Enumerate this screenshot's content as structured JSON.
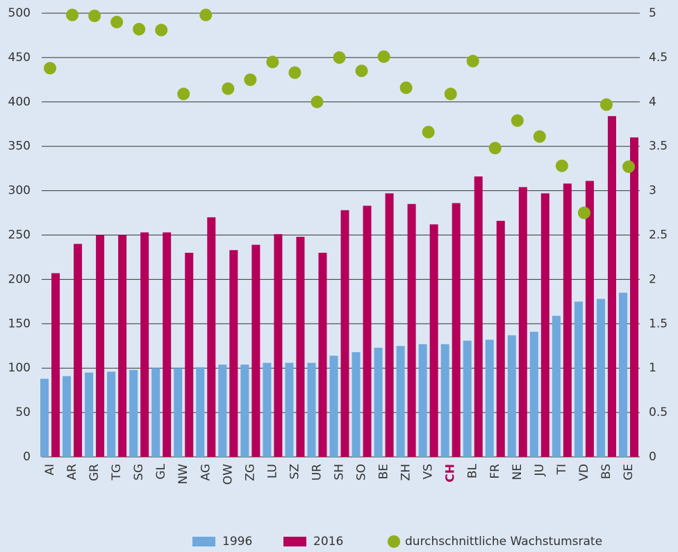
{
  "chart_data": {
    "type": "bar",
    "categories": [
      "AI",
      "AR",
      "GR",
      "TG",
      "SG",
      "GL",
      "NW",
      "AG",
      "OW",
      "ZG",
      "LU",
      "SZ",
      "UR",
      "SH",
      "SO",
      "BE",
      "ZH",
      "VS",
      "CH",
      "BL",
      "FR",
      "NE",
      "JU",
      "TI",
      "VD",
      "BS",
      "GE"
    ],
    "highlight": "CH",
    "highlight_color": "#b5005a",
    "series": [
      {
        "name": "1996",
        "color": "#6fa8dc",
        "type": "bar",
        "values": [
          88,
          91,
          95,
          96,
          98,
          100,
          100,
          101,
          104,
          104,
          106,
          106,
          106,
          114,
          118,
          123,
          125,
          127,
          127,
          131,
          132,
          137,
          141,
          159,
          175,
          178,
          185
        ]
      },
      {
        "name": "2016",
        "color": "#b5005a",
        "type": "bar",
        "values": [
          207,
          240,
          250,
          250,
          253,
          253,
          230,
          270,
          233,
          239,
          251,
          248,
          230,
          278,
          283,
          297,
          285,
          262,
          286,
          316,
          266,
          304,
          297,
          308,
          311,
          384,
          360
        ]
      },
      {
        "name": "durchschnittliche Wachstumsrate",
        "color": "#8fae1b",
        "type": "scatter",
        "axis": "y2",
        "values": [
          4.38,
          4.98,
          4.97,
          4.9,
          4.82,
          4.81,
          4.09,
          4.98,
          4.15,
          4.25,
          4.45,
          4.33,
          4.0,
          4.5,
          4.35,
          4.51,
          4.16,
          3.66,
          4.09,
          4.46,
          3.48,
          3.79,
          3.61,
          3.28,
          2.75,
          3.97,
          3.27
        ]
      }
    ],
    "ylim": [
      0,
      500
    ],
    "yticks": [
      0,
      50,
      100,
      150,
      200,
      250,
      300,
      350,
      400,
      450,
      500
    ],
    "y2lim": [
      0,
      5
    ],
    "y2ticks": [
      0,
      0.5,
      1,
      1.5,
      2,
      2.5,
      3,
      3.5,
      4,
      4.5,
      5
    ],
    "grid": true,
    "legend": "bottom"
  }
}
